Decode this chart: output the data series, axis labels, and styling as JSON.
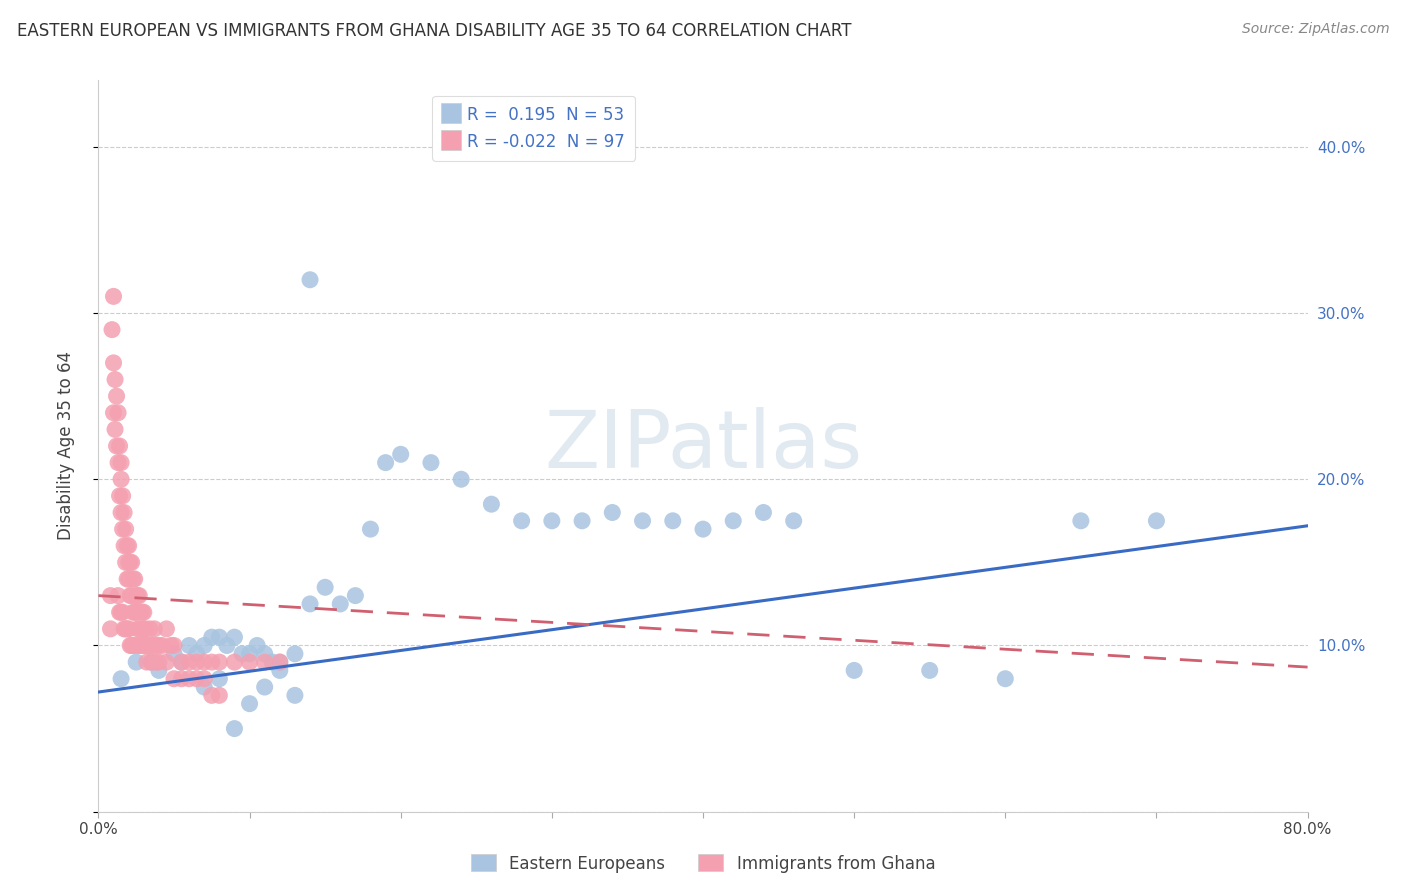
{
  "title": "EASTERN EUROPEAN VS IMMIGRANTS FROM GHANA DISABILITY AGE 35 TO 64 CORRELATION CHART",
  "source": "Source: ZipAtlas.com",
  "ylabel": "Disability Age 35 to 64",
  "xlim": [
    0.0,
    0.8
  ],
  "ylim": [
    0.0,
    0.44
  ],
  "xtick_positions": [
    0.0,
    0.1,
    0.2,
    0.3,
    0.4,
    0.5,
    0.6,
    0.7,
    0.8
  ],
  "xticklabels": [
    "0.0%",
    "",
    "",
    "",
    "",
    "",
    "",
    "",
    "80.0%"
  ],
  "ytick_positions": [
    0.0,
    0.1,
    0.2,
    0.3,
    0.4
  ],
  "yticklabels_right": [
    "",
    "10.0%",
    "20.0%",
    "30.0%",
    "40.0%"
  ],
  "blue_R": 0.195,
  "blue_N": 53,
  "pink_R": -0.022,
  "pink_N": 97,
  "blue_color": "#a8c4e0",
  "pink_color": "#f4a0b0",
  "blue_line_color": "#3a6bc4",
  "pink_line_color": "#d06070",
  "legend_label_blue": "Eastern Europeans",
  "legend_label_pink": "Immigrants from Ghana",
  "blue_line_x0": 0.0,
  "blue_line_y0": 0.072,
  "blue_line_x1": 0.8,
  "blue_line_y1": 0.172,
  "pink_line_x0": 0.0,
  "pink_line_y0": 0.13,
  "pink_line_x1": 0.8,
  "pink_line_y1": 0.087,
  "blue_scatter_x": [
    0.015,
    0.025,
    0.035,
    0.04,
    0.05,
    0.055,
    0.06,
    0.065,
    0.07,
    0.075,
    0.08,
    0.085,
    0.09,
    0.095,
    0.1,
    0.105,
    0.11,
    0.115,
    0.12,
    0.13,
    0.14,
    0.15,
    0.16,
    0.17,
    0.18,
    0.19,
    0.2,
    0.22,
    0.24,
    0.26,
    0.28,
    0.3,
    0.32,
    0.34,
    0.36,
    0.38,
    0.4,
    0.42,
    0.44,
    0.46,
    0.5,
    0.55,
    0.6,
    0.65,
    0.7,
    0.07,
    0.08,
    0.09,
    0.1,
    0.11,
    0.12,
    0.13,
    0.14
  ],
  "blue_scatter_y": [
    0.08,
    0.09,
    0.09,
    0.085,
    0.095,
    0.09,
    0.1,
    0.095,
    0.1,
    0.105,
    0.105,
    0.1,
    0.105,
    0.095,
    0.095,
    0.1,
    0.095,
    0.09,
    0.09,
    0.095,
    0.125,
    0.135,
    0.125,
    0.13,
    0.17,
    0.21,
    0.215,
    0.21,
    0.2,
    0.185,
    0.175,
    0.175,
    0.175,
    0.18,
    0.175,
    0.175,
    0.17,
    0.175,
    0.18,
    0.175,
    0.085,
    0.085,
    0.08,
    0.175,
    0.175,
    0.075,
    0.08,
    0.05,
    0.065,
    0.075,
    0.085,
    0.07,
    0.32
  ],
  "pink_scatter_x": [
    0.008,
    0.008,
    0.009,
    0.01,
    0.01,
    0.01,
    0.011,
    0.011,
    0.012,
    0.012,
    0.013,
    0.013,
    0.014,
    0.014,
    0.015,
    0.015,
    0.015,
    0.016,
    0.016,
    0.017,
    0.017,
    0.018,
    0.018,
    0.019,
    0.019,
    0.02,
    0.02,
    0.02,
    0.021,
    0.021,
    0.022,
    0.022,
    0.023,
    0.023,
    0.024,
    0.024,
    0.025,
    0.025,
    0.026,
    0.026,
    0.027,
    0.027,
    0.028,
    0.028,
    0.029,
    0.03,
    0.03,
    0.031,
    0.031,
    0.032,
    0.033,
    0.034,
    0.035,
    0.036,
    0.037,
    0.038,
    0.04,
    0.042,
    0.045,
    0.048,
    0.05,
    0.055,
    0.06,
    0.065,
    0.07,
    0.075,
    0.08,
    0.09,
    0.1,
    0.11,
    0.12,
    0.013,
    0.014,
    0.015,
    0.016,
    0.017,
    0.018,
    0.019,
    0.02,
    0.021,
    0.022,
    0.023,
    0.025,
    0.027,
    0.03,
    0.032,
    0.035,
    0.038,
    0.04,
    0.045,
    0.05,
    0.055,
    0.06,
    0.065,
    0.07,
    0.075,
    0.08
  ],
  "pink_scatter_y": [
    0.13,
    0.11,
    0.29,
    0.31,
    0.27,
    0.24,
    0.26,
    0.23,
    0.25,
    0.22,
    0.24,
    0.21,
    0.22,
    0.19,
    0.21,
    0.18,
    0.2,
    0.19,
    0.17,
    0.18,
    0.16,
    0.17,
    0.15,
    0.16,
    0.14,
    0.16,
    0.15,
    0.14,
    0.15,
    0.13,
    0.15,
    0.13,
    0.14,
    0.12,
    0.14,
    0.12,
    0.13,
    0.12,
    0.13,
    0.11,
    0.13,
    0.11,
    0.12,
    0.1,
    0.12,
    0.11,
    0.12,
    0.1,
    0.11,
    0.1,
    0.1,
    0.11,
    0.1,
    0.1,
    0.11,
    0.1,
    0.1,
    0.1,
    0.11,
    0.1,
    0.1,
    0.09,
    0.09,
    0.09,
    0.09,
    0.09,
    0.09,
    0.09,
    0.09,
    0.09,
    0.09,
    0.13,
    0.12,
    0.12,
    0.12,
    0.11,
    0.11,
    0.11,
    0.11,
    0.1,
    0.1,
    0.1,
    0.1,
    0.1,
    0.1,
    0.09,
    0.09,
    0.09,
    0.09,
    0.09,
    0.08,
    0.08,
    0.08,
    0.08,
    0.08,
    0.07,
    0.07
  ]
}
